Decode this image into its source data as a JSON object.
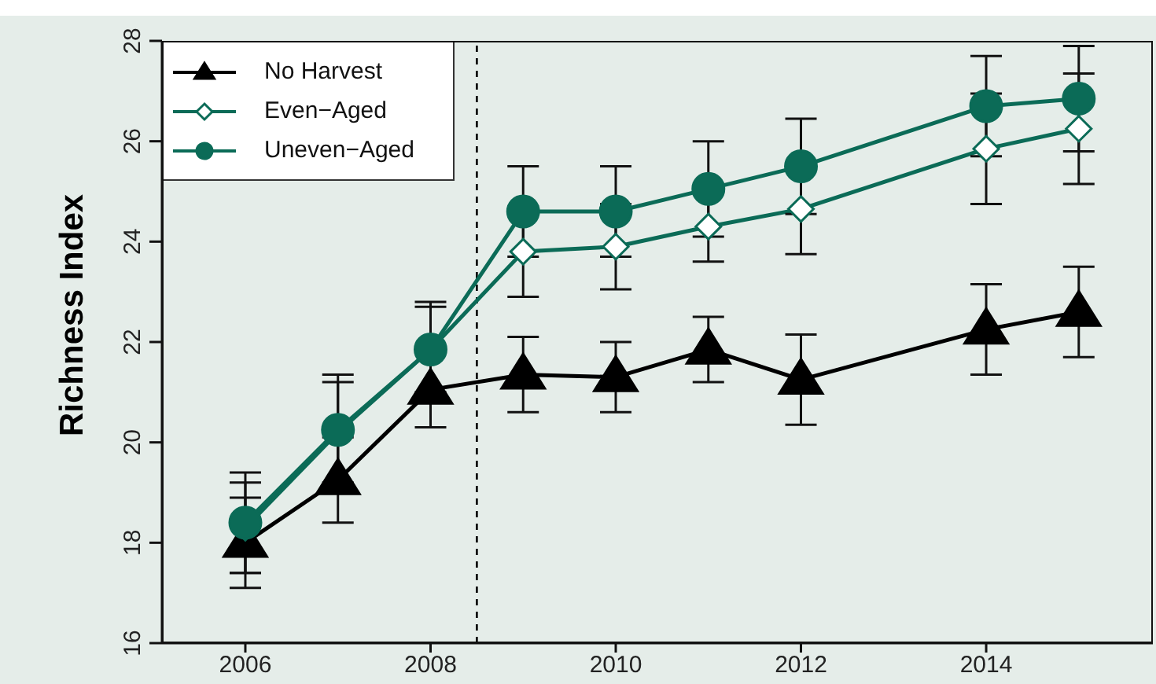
{
  "chart_data": {
    "type": "line",
    "ylabel": "Richness Index",
    "x": [
      2006,
      2007,
      2008,
      2009,
      2010,
      2011,
      2012,
      2014,
      2015
    ],
    "xlim": [
      2005.1,
      2015.8
    ],
    "xticks": [
      2006,
      2008,
      2010,
      2012,
      2014
    ],
    "ylim": [
      16,
      28
    ],
    "yticks": [
      16,
      18,
      20,
      22,
      24,
      26,
      28
    ],
    "series": [
      {
        "name": "No Harvest",
        "color": "#000000",
        "marker": "triangle",
        "values": [
          18.0,
          19.25,
          21.05,
          21.35,
          21.3,
          21.85,
          21.25,
          22.25,
          22.6
        ],
        "errors": [
          0.9,
          0.85,
          0.75,
          0.75,
          0.7,
          0.65,
          0.9,
          0.9,
          0.9
        ]
      },
      {
        "name": "Even−Aged",
        "color": "#0b6b57",
        "marker": "diamond",
        "values": [
          18.3,
          20.2,
          21.85,
          23.8,
          23.9,
          24.3,
          24.65,
          25.85,
          26.25
        ],
        "errors": [
          0.9,
          1.0,
          0.85,
          0.9,
          0.85,
          0.7,
          0.9,
          1.1,
          1.1
        ]
      },
      {
        "name": "Uneven−Aged",
        "color": "#0b6b57",
        "marker": "circle",
        "values": [
          18.4,
          20.25,
          21.85,
          24.6,
          24.6,
          25.05,
          25.5,
          26.7,
          26.85
        ],
        "errors": [
          1.0,
          1.1,
          0.95,
          0.9,
          0.9,
          0.95,
          0.95,
          1.0,
          1.05
        ]
      }
    ],
    "ref_lines": [
      {
        "axis": "x",
        "value": 2008.5,
        "line_style": "dashed",
        "color": "#000000"
      }
    ],
    "legend": "top left",
    "grid": false
  }
}
